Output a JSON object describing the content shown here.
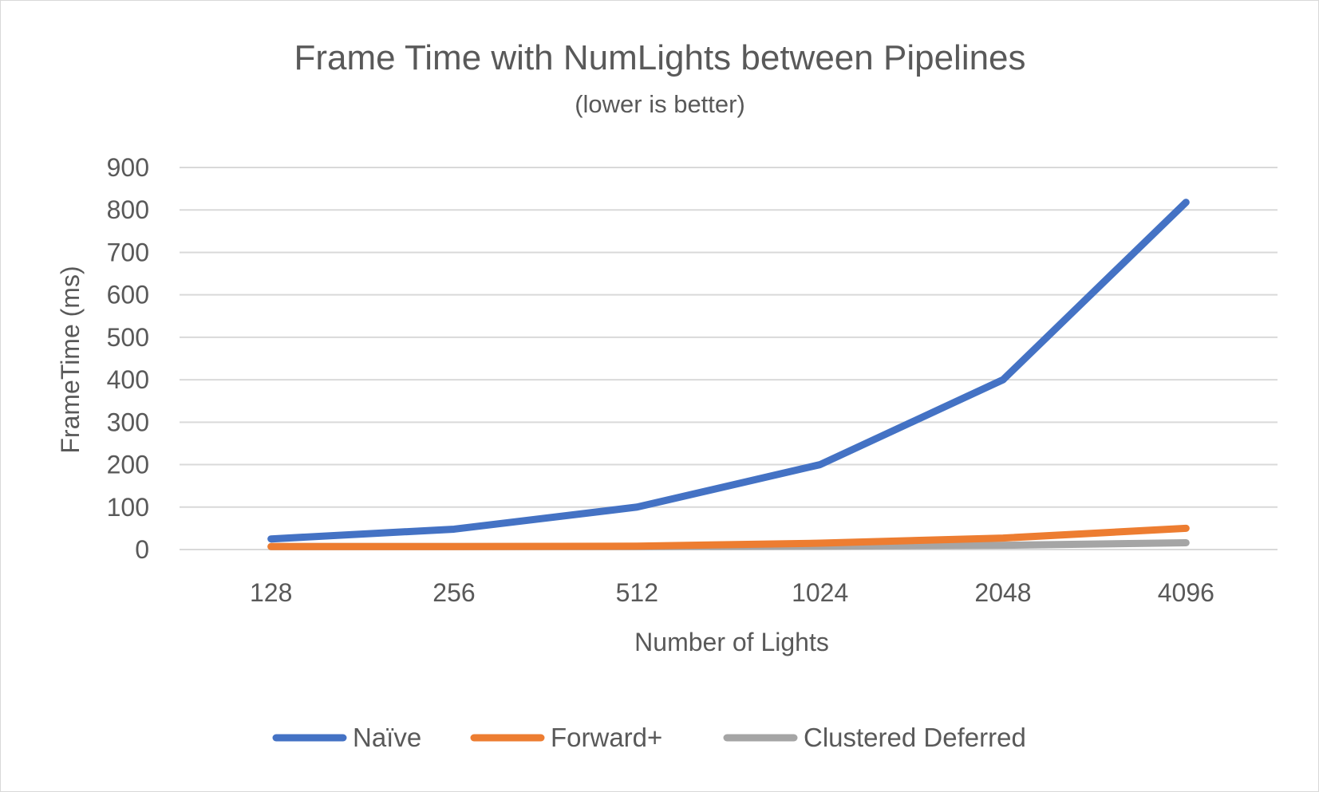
{
  "chart_data": {
    "type": "line",
    "title": "Frame Time with NumLights between Pipelines",
    "subtitle": "(lower is better)",
    "xlabel": "Number of Lights",
    "ylabel": "FrameTime (ms)",
    "categories": [
      "128",
      "256",
      "512",
      "1024",
      "2048",
      "4096"
    ],
    "ylim": [
      0,
      900
    ],
    "yticks": [
      0,
      100,
      200,
      300,
      400,
      500,
      600,
      700,
      800,
      900
    ],
    "grid": true,
    "legend_position": "bottom",
    "series": [
      {
        "name": "Naïve",
        "color": "#4472c4",
        "values": [
          25,
          48,
          100,
          200,
          400,
          818
        ]
      },
      {
        "name": "Forward+",
        "color": "#ed7d31",
        "values": [
          7,
          7,
          8,
          15,
          27,
          50
        ]
      },
      {
        "name": "Clustered Deferred",
        "color": "#a5a5a5",
        "values": [
          7,
          7,
          7,
          8,
          10,
          16
        ]
      }
    ]
  }
}
